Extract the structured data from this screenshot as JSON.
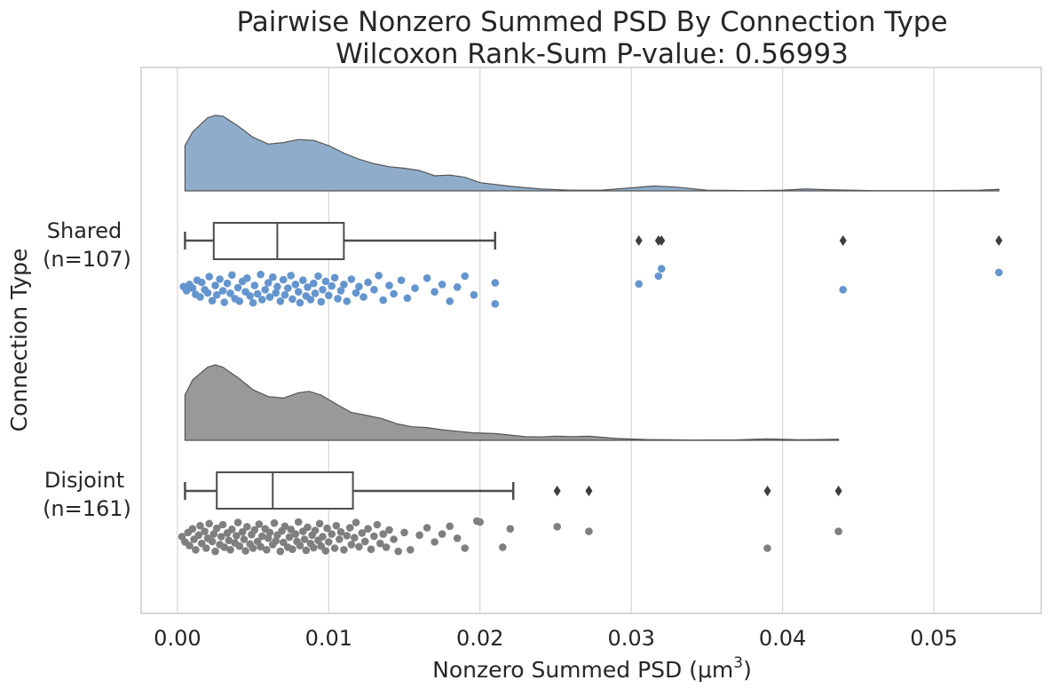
{
  "chart_data": {
    "type": "raincloud",
    "title": "Pairwise Nonzero Summed PSD By Connection Type",
    "subtitle": "Wilcoxon Rank-Sum P-value: 0.56993",
    "xlabel_main": "Nonzero Summed PSD (μm",
    "xlabel_sup": "3",
    "xlabel_close": ")",
    "ylabel": "Connection Type",
    "xlim": [
      -0.0024,
      0.0571
    ],
    "xticks": [
      0.0,
      0.01,
      0.02,
      0.03,
      0.04,
      0.05
    ],
    "xtick_labels": [
      "0.00",
      "0.01",
      "0.02",
      "0.03",
      "0.04",
      "0.05"
    ],
    "grid": true,
    "groups": [
      {
        "label_line1": "Shared",
        "label_line2": "(n=107)",
        "color": "#6495ce",
        "kde_color": "#8fadcb",
        "box": {
          "whislo": 0.0005,
          "q1": 0.0024,
          "median": 0.0066,
          "q3": 0.011,
          "whishi": 0.021
        },
        "fliers": [
          0.0305,
          0.0318,
          0.032,
          0.044,
          0.0543
        ],
        "kde": [
          [
            0.0005,
            0.6
          ],
          [
            0.001,
            0.78
          ],
          [
            0.002,
            0.97
          ],
          [
            0.0025,
            1.0
          ],
          [
            0.003,
            0.99
          ],
          [
            0.004,
            0.86
          ],
          [
            0.005,
            0.71
          ],
          [
            0.006,
            0.62
          ],
          [
            0.007,
            0.64
          ],
          [
            0.008,
            0.68
          ],
          [
            0.009,
            0.67
          ],
          [
            0.01,
            0.6
          ],
          [
            0.011,
            0.5
          ],
          [
            0.012,
            0.42
          ],
          [
            0.013,
            0.36
          ],
          [
            0.014,
            0.32
          ],
          [
            0.015,
            0.3
          ],
          [
            0.016,
            0.27
          ],
          [
            0.017,
            0.2
          ],
          [
            0.018,
            0.21
          ],
          [
            0.019,
            0.18
          ],
          [
            0.02,
            0.11
          ],
          [
            0.022,
            0.06
          ],
          [
            0.024,
            0.025
          ],
          [
            0.026,
            0.01
          ],
          [
            0.028,
            0.01
          ],
          [
            0.03,
            0.04
          ],
          [
            0.0315,
            0.065
          ],
          [
            0.033,
            0.05
          ],
          [
            0.035,
            0.01
          ],
          [
            0.038,
            0.004
          ],
          [
            0.04,
            0.01
          ],
          [
            0.0415,
            0.025
          ],
          [
            0.043,
            0.015
          ],
          [
            0.046,
            0.003
          ],
          [
            0.05,
            0.004
          ],
          [
            0.053,
            0.01
          ],
          [
            0.0543,
            0.02
          ]
        ],
        "points": [
          [
            0.0004,
            0.58
          ],
          [
            0.0006,
            0.5
          ],
          [
            0.0008,
            0.62
          ],
          [
            0.001,
            0.55
          ],
          [
            0.0012,
            0.43
          ],
          [
            0.0013,
            0.7
          ],
          [
            0.0015,
            0.38
          ],
          [
            0.0016,
            0.66
          ],
          [
            0.0018,
            0.52
          ],
          [
            0.002,
            0.46
          ],
          [
            0.0021,
            0.77
          ],
          [
            0.0023,
            0.31
          ],
          [
            0.0025,
            0.6
          ],
          [
            0.0026,
            0.42
          ],
          [
            0.0028,
            0.72
          ],
          [
            0.003,
            0.5
          ],
          [
            0.0031,
            0.28
          ],
          [
            0.0033,
            0.64
          ],
          [
            0.0035,
            0.45
          ],
          [
            0.0036,
            0.8
          ],
          [
            0.0038,
            0.35
          ],
          [
            0.004,
            0.56
          ],
          [
            0.0041,
            0.3
          ],
          [
            0.0043,
            0.68
          ],
          [
            0.0045,
            0.48
          ],
          [
            0.0046,
            0.74
          ],
          [
            0.0048,
            0.4
          ],
          [
            0.005,
            0.27
          ],
          [
            0.0051,
            0.6
          ],
          [
            0.0053,
            0.44
          ],
          [
            0.0055,
            0.81
          ],
          [
            0.0056,
            0.33
          ],
          [
            0.0058,
            0.52
          ],
          [
            0.006,
            0.65
          ],
          [
            0.0061,
            0.38
          ],
          [
            0.0063,
            0.76
          ],
          [
            0.0065,
            0.46
          ],
          [
            0.0066,
            0.58
          ],
          [
            0.0068,
            0.3
          ],
          [
            0.007,
            0.71
          ],
          [
            0.0071,
            0.42
          ],
          [
            0.0073,
            0.55
          ],
          [
            0.0075,
            0.79
          ],
          [
            0.0076,
            0.34
          ],
          [
            0.0078,
            0.62
          ],
          [
            0.008,
            0.48
          ],
          [
            0.0081,
            0.27
          ],
          [
            0.0083,
            0.7
          ],
          [
            0.0085,
            0.4
          ],
          [
            0.0086,
            0.57
          ],
          [
            0.0088,
            0.33
          ],
          [
            0.009,
            0.64
          ],
          [
            0.0091,
            0.45
          ],
          [
            0.0093,
            0.78
          ],
          [
            0.0095,
            0.29
          ],
          [
            0.0096,
            0.52
          ],
          [
            0.0098,
            0.68
          ],
          [
            0.01,
            0.41
          ],
          [
            0.0102,
            0.59
          ],
          [
            0.0104,
            0.75
          ],
          [
            0.0106,
            0.35
          ],
          [
            0.0108,
            0.5
          ],
          [
            0.011,
            0.62
          ],
          [
            0.0112,
            0.3
          ],
          [
            0.0115,
            0.72
          ],
          [
            0.0118,
            0.46
          ],
          [
            0.012,
            0.58
          ],
          [
            0.0123,
            0.38
          ],
          [
            0.0126,
            0.66
          ],
          [
            0.013,
            0.52
          ],
          [
            0.0133,
            0.79
          ],
          [
            0.0136,
            0.32
          ],
          [
            0.014,
            0.6
          ],
          [
            0.0143,
            0.44
          ],
          [
            0.0148,
            0.7
          ],
          [
            0.0152,
            0.36
          ],
          [
            0.0157,
            0.55
          ],
          [
            0.0165,
            0.74
          ],
          [
            0.017,
            0.48
          ],
          [
            0.0175,
            0.62
          ],
          [
            0.018,
            0.3
          ],
          [
            0.0185,
            0.57
          ],
          [
            0.019,
            0.78
          ],
          [
            0.0196,
            0.42
          ],
          [
            0.021,
            0.25
          ],
          [
            0.021,
            0.65
          ],
          [
            0.0305,
            0.63
          ],
          [
            0.0318,
            0.78
          ],
          [
            0.032,
            0.92
          ],
          [
            0.044,
            0.52
          ],
          [
            0.0543,
            0.85
          ]
        ]
      },
      {
        "label_line1": "Disjoint",
        "label_line2": "(n=161)",
        "color": "#7f7f7f",
        "kde_color": "#999999",
        "box": {
          "whislo": 0.0005,
          "q1": 0.0026,
          "median": 0.0063,
          "q3": 0.0116,
          "whishi": 0.0222
        },
        "fliers": [
          0.0251,
          0.0272,
          0.039,
          0.0437
        ],
        "kde": [
          [
            0.0005,
            0.6
          ],
          [
            0.001,
            0.8
          ],
          [
            0.002,
            0.97
          ],
          [
            0.0025,
            1.0
          ],
          [
            0.003,
            0.97
          ],
          [
            0.004,
            0.83
          ],
          [
            0.005,
            0.67
          ],
          [
            0.006,
            0.58
          ],
          [
            0.007,
            0.56
          ],
          [
            0.008,
            0.63
          ],
          [
            0.0087,
            0.65
          ],
          [
            0.0095,
            0.6
          ],
          [
            0.0105,
            0.48
          ],
          [
            0.0115,
            0.37
          ],
          [
            0.0125,
            0.33
          ],
          [
            0.0135,
            0.29
          ],
          [
            0.0145,
            0.22
          ],
          [
            0.0155,
            0.18
          ],
          [
            0.0165,
            0.17
          ],
          [
            0.0175,
            0.14
          ],
          [
            0.0185,
            0.12
          ],
          [
            0.0195,
            0.1
          ],
          [
            0.021,
            0.09
          ],
          [
            0.022,
            0.07
          ],
          [
            0.023,
            0.05
          ],
          [
            0.024,
            0.045
          ],
          [
            0.025,
            0.055
          ],
          [
            0.026,
            0.05
          ],
          [
            0.0272,
            0.055
          ],
          [
            0.029,
            0.025
          ],
          [
            0.031,
            0.01
          ],
          [
            0.034,
            0.004
          ],
          [
            0.037,
            0.006
          ],
          [
            0.039,
            0.02
          ],
          [
            0.041,
            0.008
          ],
          [
            0.0425,
            0.01
          ],
          [
            0.0437,
            0.015
          ]
        ],
        "points": [
          [
            0.0003,
            0.55
          ],
          [
            0.0005,
            0.45
          ],
          [
            0.0007,
            0.63
          ],
          [
            0.0008,
            0.38
          ],
          [
            0.001,
            0.7
          ],
          [
            0.0011,
            0.5
          ],
          [
            0.0012,
            0.3
          ],
          [
            0.0014,
            0.58
          ],
          [
            0.0015,
            0.76
          ],
          [
            0.0016,
            0.42
          ],
          [
            0.0018,
            0.65
          ],
          [
            0.0019,
            0.33
          ],
          [
            0.002,
            0.52
          ],
          [
            0.0021,
            0.8
          ],
          [
            0.0023,
            0.46
          ],
          [
            0.0024,
            0.6
          ],
          [
            0.0025,
            0.27
          ],
          [
            0.0026,
            0.71
          ],
          [
            0.0028,
            0.4
          ],
          [
            0.0029,
            0.55
          ],
          [
            0.003,
            0.78
          ],
          [
            0.0031,
            0.35
          ],
          [
            0.0033,
            0.62
          ],
          [
            0.0034,
            0.48
          ],
          [
            0.0035,
            0.3
          ],
          [
            0.0036,
            0.69
          ],
          [
            0.0038,
            0.43
          ],
          [
            0.0039,
            0.57
          ],
          [
            0.004,
            0.82
          ],
          [
            0.0041,
            0.37
          ],
          [
            0.0043,
            0.64
          ],
          [
            0.0044,
            0.5
          ],
          [
            0.0045,
            0.28
          ],
          [
            0.0046,
            0.74
          ],
          [
            0.0048,
            0.41
          ],
          [
            0.0049,
            0.59
          ],
          [
            0.005,
            0.33
          ],
          [
            0.0051,
            0.68
          ],
          [
            0.0053,
            0.46
          ],
          [
            0.0054,
            0.79
          ],
          [
            0.0055,
            0.36
          ],
          [
            0.0056,
            0.56
          ],
          [
            0.0058,
            0.7
          ],
          [
            0.0059,
            0.3
          ],
          [
            0.006,
            0.52
          ],
          [
            0.0061,
            0.63
          ],
          [
            0.0063,
            0.4
          ],
          [
            0.0064,
            0.81
          ],
          [
            0.0065,
            0.47
          ],
          [
            0.0066,
            0.58
          ],
          [
            0.0068,
            0.27
          ],
          [
            0.0069,
            0.66
          ],
          [
            0.007,
            0.44
          ],
          [
            0.0071,
            0.75
          ],
          [
            0.0073,
            0.35
          ],
          [
            0.0074,
            0.54
          ],
          [
            0.0075,
            0.69
          ],
          [
            0.0076,
            0.31
          ],
          [
            0.0078,
            0.6
          ],
          [
            0.0079,
            0.46
          ],
          [
            0.008,
            0.83
          ],
          [
            0.0081,
            0.38
          ],
          [
            0.0083,
            0.65
          ],
          [
            0.0084,
            0.5
          ],
          [
            0.0085,
            0.29
          ],
          [
            0.0086,
            0.73
          ],
          [
            0.0088,
            0.42
          ],
          [
            0.0089,
            0.58
          ],
          [
            0.009,
            0.34
          ],
          [
            0.0091,
            0.67
          ],
          [
            0.0093,
            0.48
          ],
          [
            0.0094,
            0.8
          ],
          [
            0.0095,
            0.37
          ],
          [
            0.0096,
            0.55
          ],
          [
            0.0098,
            0.28
          ],
          [
            0.0099,
            0.71
          ],
          [
            0.01,
            0.45
          ],
          [
            0.0102,
            0.6
          ],
          [
            0.0104,
            0.33
          ],
          [
            0.0105,
            0.76
          ],
          [
            0.0107,
            0.5
          ],
          [
            0.0108,
            0.64
          ],
          [
            0.011,
            0.3
          ],
          [
            0.0112,
            0.57
          ],
          [
            0.0114,
            0.72
          ],
          [
            0.0115,
            0.4
          ],
          [
            0.0117,
            0.53
          ],
          [
            0.0118,
            0.82
          ],
          [
            0.012,
            0.36
          ],
          [
            0.0122,
            0.62
          ],
          [
            0.0124,
            0.46
          ],
          [
            0.0126,
            0.7
          ],
          [
            0.0128,
            0.31
          ],
          [
            0.013,
            0.56
          ],
          [
            0.0132,
            0.78
          ],
          [
            0.0134,
            0.42
          ],
          [
            0.0136,
            0.6
          ],
          [
            0.0138,
            0.35
          ],
          [
            0.014,
            0.68
          ],
          [
            0.0143,
            0.5
          ],
          [
            0.0146,
            0.27
          ],
          [
            0.015,
            0.63
          ],
          [
            0.0154,
            0.3
          ],
          [
            0.016,
            0.58
          ],
          [
            0.0165,
            0.72
          ],
          [
            0.017,
            0.45
          ],
          [
            0.0175,
            0.6
          ],
          [
            0.018,
            0.75
          ],
          [
            0.0185,
            0.52
          ],
          [
            0.019,
            0.33
          ],
          [
            0.0198,
            0.85
          ],
          [
            0.02,
            0.83
          ],
          [
            0.0215,
            0.35
          ],
          [
            0.022,
            0.7
          ],
          [
            0.0251,
            0.74
          ],
          [
            0.0272,
            0.65
          ],
          [
            0.039,
            0.33
          ],
          [
            0.0437,
            0.65
          ]
        ]
      }
    ]
  }
}
